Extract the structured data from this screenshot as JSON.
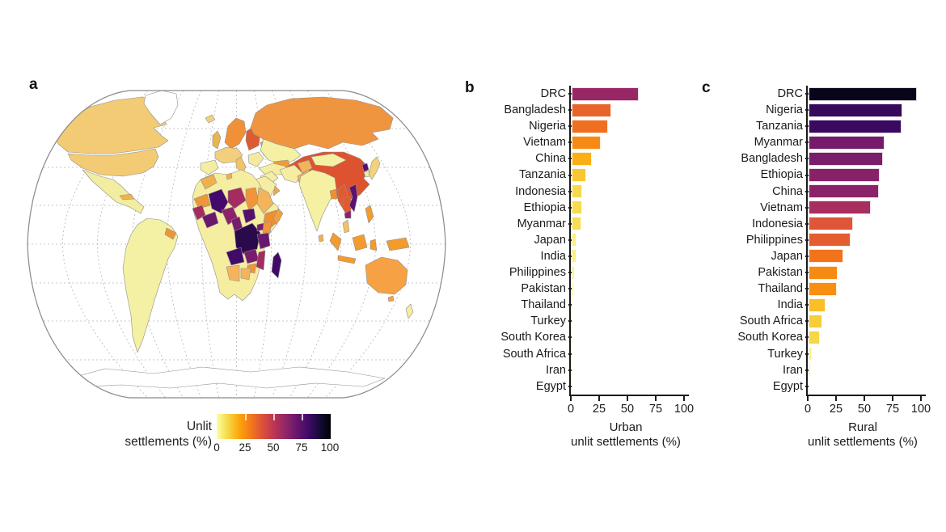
{
  "panels": {
    "a": {
      "label": "a"
    },
    "b": {
      "label": "b"
    },
    "c": {
      "label": "c"
    }
  },
  "legend": {
    "title_line1": "Unlit",
    "title_line2": "settlements (%)",
    "ticks": [
      "0",
      "25",
      "50",
      "75",
      "100"
    ]
  },
  "colormap": {
    "note": "value v% maps to inferno(1 - v/100); legend runs light(0%) to dark(100%)",
    "stops": [
      {
        "t": 0.0,
        "c": "#000004"
      },
      {
        "t": 0.1,
        "c": "#160b39"
      },
      {
        "t": 0.2,
        "c": "#420a68"
      },
      {
        "t": 0.3,
        "c": "#6a176e"
      },
      {
        "t": 0.4,
        "c": "#932667"
      },
      {
        "t": 0.5,
        "c": "#bc3754"
      },
      {
        "t": 0.6,
        "c": "#dd513a"
      },
      {
        "t": 0.7,
        "c": "#f37819"
      },
      {
        "t": 0.8,
        "c": "#fca50a"
      },
      {
        "t": 0.9,
        "c": "#f6d746"
      },
      {
        "t": 1.0,
        "c": "#fcffa4"
      }
    ]
  },
  "chart_data": [
    {
      "type": "bar",
      "orientation": "horizontal",
      "panel": "b",
      "title": "",
      "xlabel_line1": "Urban",
      "xlabel_line2": "unlit settlements (%)",
      "xlim": [
        0,
        100
      ],
      "xticks": [
        0,
        25,
        50,
        75,
        100
      ],
      "grid": false,
      "categories": [
        "DRC",
        "Bangladesh",
        "Nigeria",
        "Vietnam",
        "China",
        "Tanzania",
        "Indonesia",
        "Ethiopia",
        "Myanmar",
        "Japan",
        "India",
        "Philippines",
        "Pakistan",
        "Thailand",
        "Turkey",
        "South Korea",
        "South Africa",
        "Iran",
        "Egypt"
      ],
      "values": [
        59,
        35,
        32,
        26,
        18,
        13,
        9.5,
        9,
        8.5,
        4,
        4,
        2.5,
        2,
        1,
        0.7,
        0.5,
        0.5,
        0.3,
        0.2
      ]
    },
    {
      "type": "bar",
      "orientation": "horizontal",
      "panel": "c",
      "title": "",
      "xlabel_line1": "Rural",
      "xlabel_line2": "unlit settlements (%)",
      "xlim": [
        0,
        100
      ],
      "xticks": [
        0,
        25,
        50,
        75,
        100
      ],
      "grid": false,
      "categories": [
        "DRC",
        "Nigeria",
        "Tanzania",
        "Myanmar",
        "Bangladesh",
        "Ethiopia",
        "China",
        "Vietnam",
        "Indonesia",
        "Philippines",
        "Japan",
        "Pakistan",
        "Thailand",
        "India",
        "South Africa",
        "South Korea",
        "Turkey",
        "Iran",
        "Egypt"
      ],
      "values": [
        96,
        83,
        82,
        67,
        66,
        63,
        62,
        55,
        39,
        37,
        31,
        26,
        25,
        15,
        12,
        10,
        3,
        2,
        1
      ]
    }
  ],
  "map": {
    "ocean": "#ffffff",
    "outline_color": "#8a8a8a",
    "graticule_color": "#b5b5b5",
    "regions": [
      {
        "id": "canada",
        "color": "#f2cb74"
      },
      {
        "id": "usa",
        "color": "#f2cb74"
      },
      {
        "id": "mexico",
        "color": "#f2eda0"
      },
      {
        "id": "cuba",
        "color": "#f0b24a"
      },
      {
        "id": "greenland",
        "color": "#ffffff"
      },
      {
        "id": "southamerica",
        "color": "#f4f0a4"
      },
      {
        "id": "guyanas",
        "color": "#ef9538"
      },
      {
        "id": "iceland",
        "color": "#f3cf7d"
      },
      {
        "id": "uk",
        "color": "#e8b54f"
      },
      {
        "id": "scandinavia",
        "color": "#f0913a"
      },
      {
        "id": "westeurope",
        "color": "#f3cf7d"
      },
      {
        "id": "iberia",
        "color": "#f4eda2"
      },
      {
        "id": "italy",
        "color": "#f0c368"
      },
      {
        "id": "easteurope",
        "color": "#dd5b31"
      },
      {
        "id": "balkans",
        "color": "#f4e9a0"
      },
      {
        "id": "ukraine",
        "color": "#f0953f"
      },
      {
        "id": "russia",
        "color": "#f0953f"
      },
      {
        "id": "kazakhstan",
        "color": "#f4f0a4"
      },
      {
        "id": "centralasia",
        "color": "#f09a3a"
      },
      {
        "id": "mongolia",
        "color": "#f4f0a4"
      },
      {
        "id": "china",
        "color": "#dd5330"
      },
      {
        "id": "northkorea",
        "color": "#57106e"
      },
      {
        "id": "southkorea",
        "color": "#f4eda2"
      },
      {
        "id": "japan",
        "color": "#f2d27a"
      },
      {
        "id": "turkey",
        "color": "#f4eda2"
      },
      {
        "id": "iraq",
        "color": "#f4eda2"
      },
      {
        "id": "iran",
        "color": "#f4eda2"
      },
      {
        "id": "afghanistan",
        "color": "#f3b45c"
      },
      {
        "id": "pakistan",
        "color": "#f3b45c"
      },
      {
        "id": "saudi",
        "color": "#f4eda2"
      },
      {
        "id": "yemen",
        "color": "#ef8f30"
      },
      {
        "id": "oman",
        "color": "#f0a846"
      },
      {
        "id": "india",
        "color": "#f6f0a2"
      },
      {
        "id": "srilanka",
        "color": "#f0b052"
      },
      {
        "id": "bangladesh",
        "color": "#ef8f30"
      },
      {
        "id": "myanmar",
        "color": "#e25b2f"
      },
      {
        "id": "thailand",
        "color": "#e25b2f"
      },
      {
        "id": "vietnam",
        "color": "#5b1270"
      },
      {
        "id": "cambodia",
        "color": "#8c2369"
      },
      {
        "id": "malaysia",
        "color": "#f3c163"
      },
      {
        "id": "indonesia",
        "color": "#f49b2e"
      },
      {
        "id": "philippines",
        "color": "#f49b2e"
      },
      {
        "id": "newguinea",
        "color": "#f49b2e"
      },
      {
        "id": "australia",
        "color": "#f6a143"
      },
      {
        "id": "newzealand",
        "color": "#f4eda2"
      },
      {
        "id": "africabase",
        "color": "#f5eda0"
      },
      {
        "id": "morocco",
        "color": "#f0b14c"
      },
      {
        "id": "tunisia",
        "color": "#f0b14c"
      },
      {
        "id": "mauritania",
        "color": "#f0953a"
      },
      {
        "id": "mali",
        "color": "#44096b"
      },
      {
        "id": "niger",
        "color": "#a32c60"
      },
      {
        "id": "chad",
        "color": "#f0953a"
      },
      {
        "id": "sudan",
        "color": "#f3b45c"
      },
      {
        "id": "ethiopia",
        "color": "#ef8f30"
      },
      {
        "id": "somalia",
        "color": "#f0a03c"
      },
      {
        "id": "senegalguinea",
        "color": "#a32c60"
      },
      {
        "id": "ghanaivory",
        "color": "#6a176e"
      },
      {
        "id": "nigeria",
        "color": "#8c2369"
      },
      {
        "id": "cameroon",
        "color": "#781c6d"
      },
      {
        "id": "car",
        "color": "#57106e"
      },
      {
        "id": "drc",
        "color": "#2a0a4a"
      },
      {
        "id": "uganda",
        "color": "#781c6d"
      },
      {
        "id": "kenya",
        "color": "#f0953a"
      },
      {
        "id": "tanzania",
        "color": "#6a176e"
      },
      {
        "id": "angola",
        "color": "#420a68"
      },
      {
        "id": "zambia",
        "color": "#781c6d"
      },
      {
        "id": "mozambique",
        "color": "#a32c60"
      },
      {
        "id": "zimbabwe",
        "color": "#f0953a"
      },
      {
        "id": "namibia",
        "color": "#f3b45c"
      },
      {
        "id": "botswana",
        "color": "#f3b45c"
      },
      {
        "id": "madagascar",
        "color": "#420a68"
      },
      {
        "id": "antarctica",
        "color": "#ffffff"
      }
    ]
  }
}
